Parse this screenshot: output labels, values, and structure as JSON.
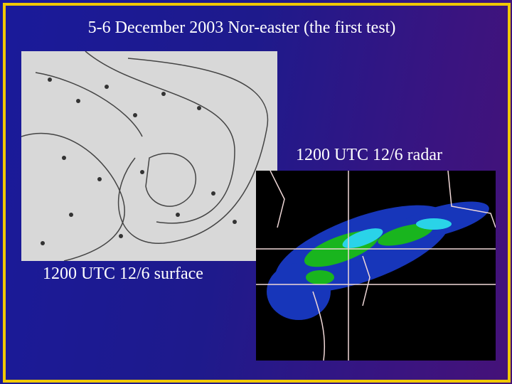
{
  "slide": {
    "title": "5-6 December 2003 Nor-easter (the first test)",
    "surface_caption": "1200 UTC 12/6 surface",
    "radar_caption": "1200 UTC 12/6 radar"
  }
}
